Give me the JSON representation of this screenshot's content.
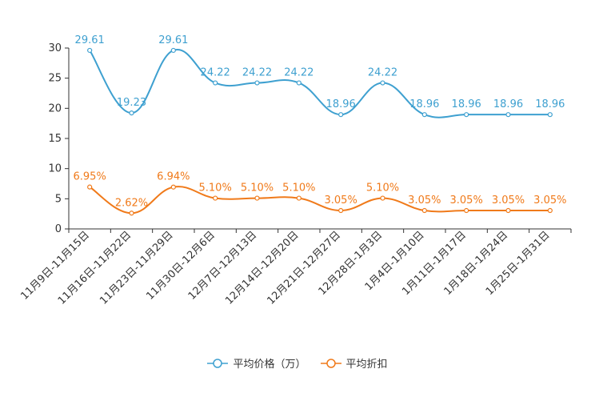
{
  "chart_data": {
    "type": "line",
    "categories": [
      "11月9日-11月15日",
      "11月16日-11月22日",
      "11月23日-11月29日",
      "11月30日-12月6日",
      "12月7日-12月13日",
      "12月14日-12月20日",
      "12月21日-12月27日",
      "12月28日-1月3日",
      "1月4日-1月10日",
      "1月11日-1月17日",
      "1月18日-1月24日",
      "1月25日-1月31日"
    ],
    "ylim": [
      0,
      30
    ],
    "yticks": [
      "0",
      "5",
      "10",
      "15",
      "20",
      "25",
      "30"
    ],
    "series": [
      {
        "name": "平均价格（万）",
        "color": "#3ea0d0",
        "values": [
          29.61,
          19.23,
          29.61,
          24.22,
          24.22,
          24.22,
          18.96,
          24.22,
          18.96,
          18.96,
          18.96,
          18.96
        ],
        "labels": [
          "29.61",
          "19.23",
          "29.61",
          "24.22",
          "24.22",
          "24.22",
          "18.96",
          "24.22",
          "18.96",
          "18.96",
          "18.96",
          "18.96"
        ]
      },
      {
        "name": "平均折扣",
        "color": "#f07a1a",
        "values": [
          6.95,
          2.62,
          6.94,
          5.1,
          5.1,
          5.1,
          3.05,
          5.1,
          3.05,
          3.05,
          3.05,
          3.05
        ],
        "labels": [
          "6.95%",
          "2.62%",
          "6.94%",
          "5.10%",
          "5.10%",
          "5.10%",
          "3.05%",
          "5.10%",
          "3.05%",
          "3.05%",
          "3.05%",
          "3.05%"
        ]
      }
    ]
  }
}
